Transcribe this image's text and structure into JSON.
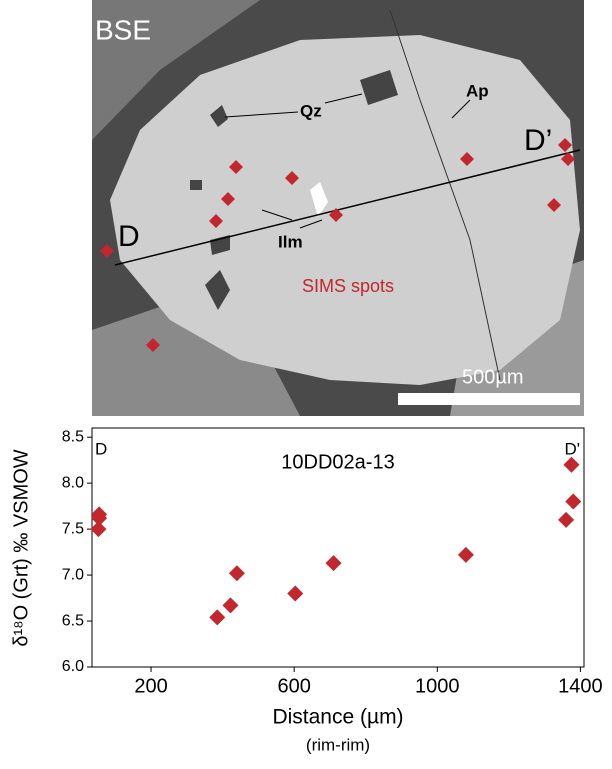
{
  "image": {
    "labels": {
      "bse": "BSE",
      "qz": "Qz",
      "ap": "Ap",
      "ilm": "Ilm",
      "d": "D",
      "d_prime": "D’",
      "sims": "SIMS spots",
      "scale": "500µm"
    }
  },
  "chart_data": {
    "type": "scatter",
    "title": "10DD02a-13",
    "annotations": {
      "left": "D",
      "right": "D'"
    },
    "x_label": "Distance (µm)",
    "x_sublabel": "(rim-rim)",
    "y_label": "δ¹⁸O (Grt) ‰ VSMOW",
    "x": [
      55,
      55,
      53,
      385,
      422,
      440,
      603,
      710,
      1080,
      1360,
      1375,
      1380
    ],
    "series": [
      {
        "name": "SIMS spots",
        "color": "#c1272d",
        "values": [
          7.66,
          7.62,
          7.5,
          6.54,
          6.67,
          7.02,
          6.8,
          7.13,
          7.22,
          7.6,
          8.2,
          7.8
        ]
      }
    ],
    "xlim": [
      35,
      1410
    ],
    "xticks": [
      200,
      600,
      1000,
      1400
    ],
    "ylim": [
      6.0,
      8.6
    ],
    "yticks": [
      {
        "value": 6.0,
        "label": "6.0"
      },
      {
        "value": 6.5,
        "label": "6.5"
      },
      {
        "value": 7.0,
        "label": "7.0"
      },
      {
        "value": 7.5,
        "label": "7.5"
      },
      {
        "value": 8.0,
        "label": "8.0"
      },
      {
        "value": 8.5,
        "label": "8.5"
      }
    ]
  }
}
